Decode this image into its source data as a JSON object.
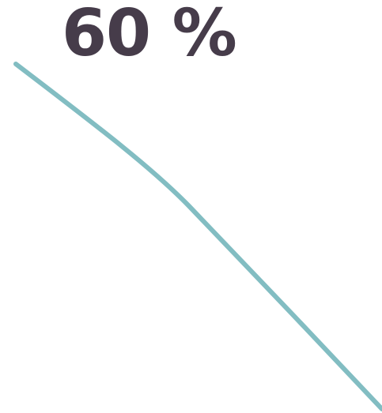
{
  "stat": {
    "value": "60 %"
  },
  "colors": {
    "text": "#463c4a",
    "curve": "#82bdc2",
    "background": "#ffffff"
  }
}
